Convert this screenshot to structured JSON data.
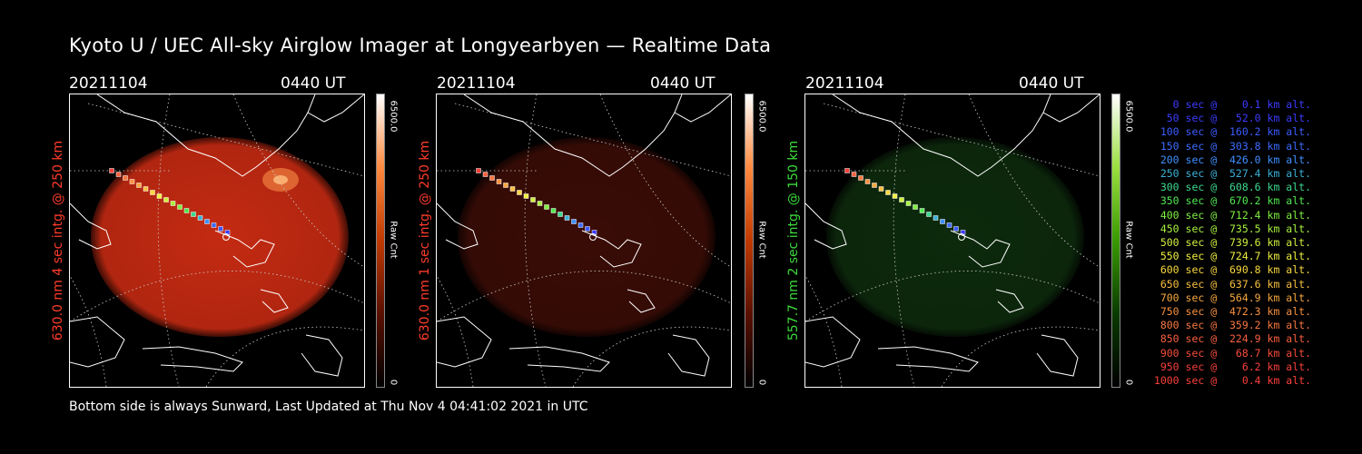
{
  "title": "Kyoto U / UEC All-sky Airglow Imager at Longyearbyen — Realtime Data",
  "footer": "Bottom side is always Sunward, Last Updated at Thu Nov  4 04:41:02 2021 in UTC",
  "panels": [
    {
      "date": "20211104",
      "time": "0440 UT",
      "label": "630.0 nm 4 sec intg. @ 250 km",
      "label_color": "#ff3c2c",
      "cbar_max": "6500.0",
      "cbar_min": "0",
      "cbar_unit": "Raw Cnt",
      "glow": "#c42a12",
      "glow_level": "bright"
    },
    {
      "date": "20211104",
      "time": "0440 UT",
      "label": "630.0 nm 1 sec intg. @ 250 km",
      "label_color": "#ff3c2c",
      "cbar_max": "6500.0",
      "cbar_min": "0",
      "cbar_unit": "Raw Cnt",
      "glow": "#3a0c06",
      "glow_level": "dim"
    },
    {
      "date": "20211104",
      "time": "0440 UT",
      "label": "557.7 nm 2 sec intg. @ 150 km",
      "label_color": "#3cdc3c",
      "cbar_max": "6500.0",
      "cbar_min": "0",
      "cbar_unit": "Raw Cnt",
      "glow": "#0d2a0d",
      "glow_level": "dim"
    }
  ],
  "legend": [
    {
      "text": "   0 sec @    0.1 km alt.",
      "color": "#3c3cff"
    },
    {
      "text": "  50 sec @   52.0 km alt.",
      "color": "#3c3cff"
    },
    {
      "text": " 100 sec @  160.2 km alt.",
      "color": "#3c5cff"
    },
    {
      "text": " 150 sec @  303.8 km alt.",
      "color": "#3c6cff"
    },
    {
      "text": " 200 sec @  426.0 km alt.",
      "color": "#4090ff"
    },
    {
      "text": " 250 sec @  527.4 km alt.",
      "color": "#3cb0d8"
    },
    {
      "text": " 300 sec @  608.6 km alt.",
      "color": "#3cd890"
    },
    {
      "text": " 350 sec @  670.2 km alt.",
      "color": "#50e850"
    },
    {
      "text": " 400 sec @  712.4 km alt.",
      "color": "#80f040"
    },
    {
      "text": " 450 sec @  735.5 km alt.",
      "color": "#a8f040"
    },
    {
      "text": " 500 sec @  739.6 km alt.",
      "color": "#d0f040"
    },
    {
      "text": " 550 sec @  724.7 km alt.",
      "color": "#f0f040"
    },
    {
      "text": " 600 sec @  690.8 km alt.",
      "color": "#f8d840"
    },
    {
      "text": " 650 sec @  637.6 km alt.",
      "color": "#f8c040"
    },
    {
      "text": " 700 sec @  564.9 km alt.",
      "color": "#f8a840"
    },
    {
      "text": " 750 sec @  472.3 km alt.",
      "color": "#f89040"
    },
    {
      "text": " 800 sec @  359.2 km alt.",
      "color": "#f87840"
    },
    {
      "text": " 850 sec @  224.9 km alt.",
      "color": "#f86040"
    },
    {
      "text": " 900 sec @   68.7 km alt.",
      "color": "#f84c3c"
    },
    {
      "text": " 950 sec @    6.2 km alt.",
      "color": "#f8403c"
    },
    {
      "text": "1000 sec @    0.4 km alt.",
      "color": "#f8403c"
    }
  ]
}
